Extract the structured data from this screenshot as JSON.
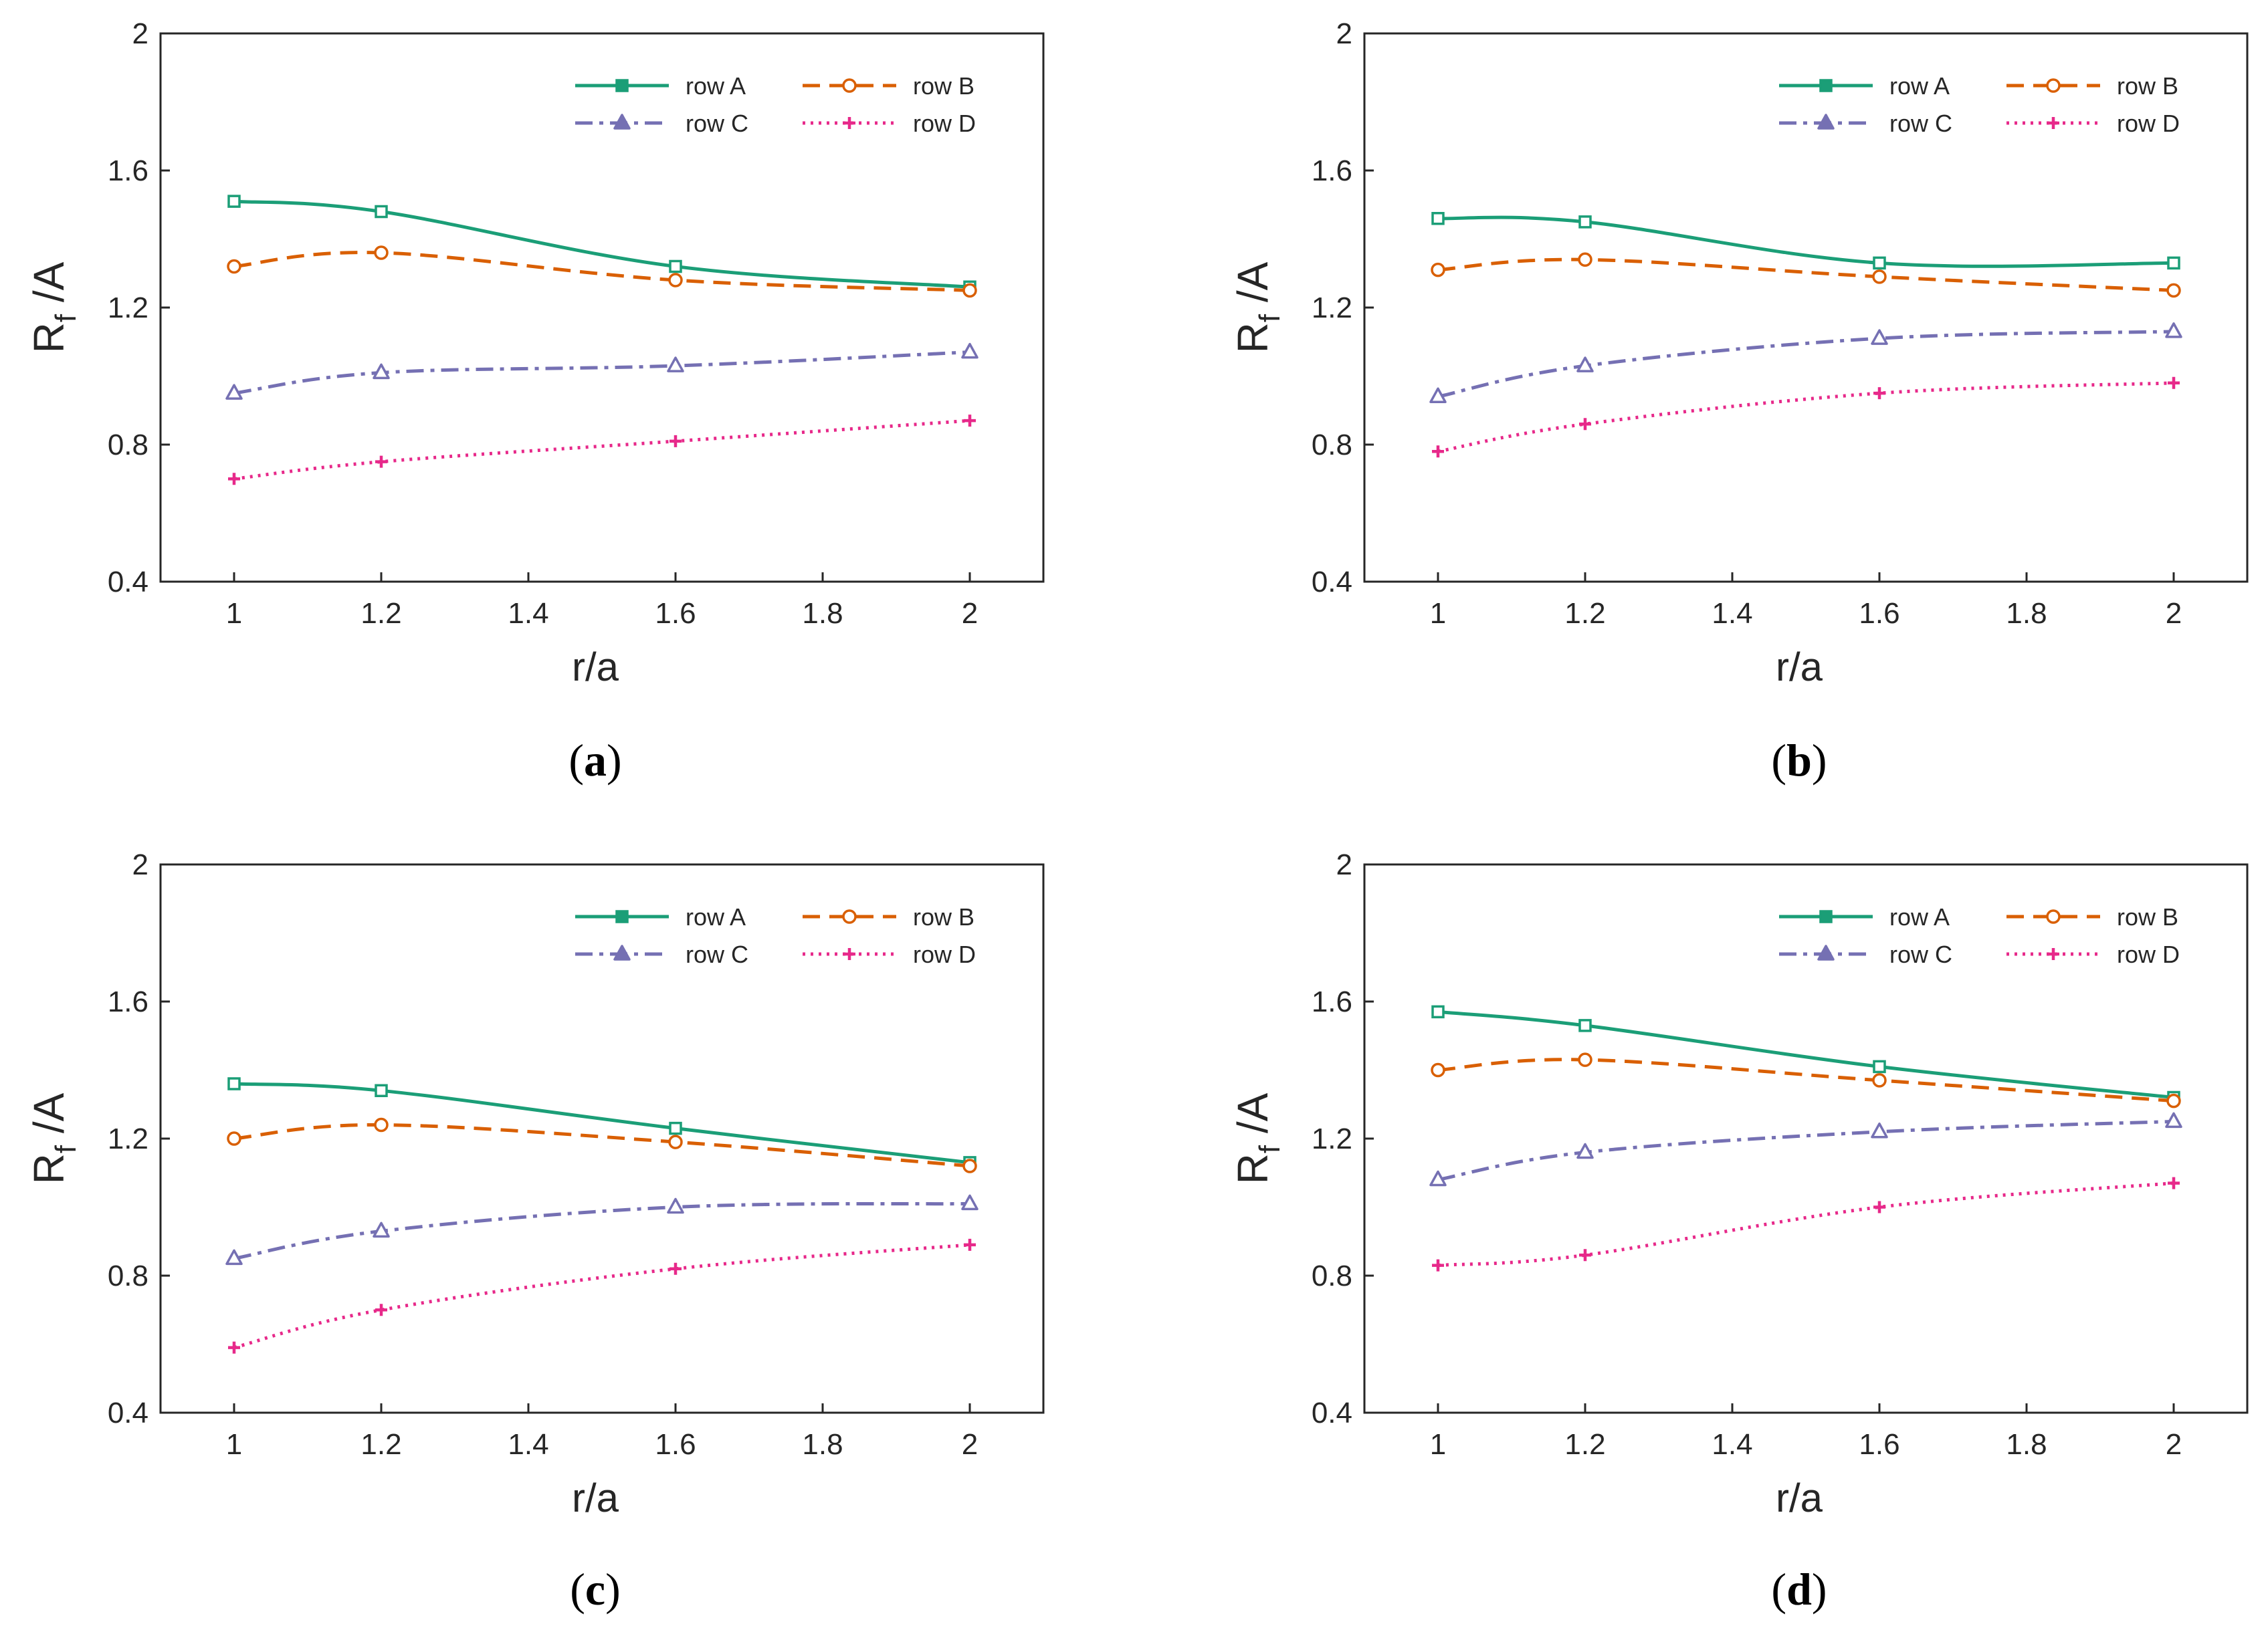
{
  "figure": {
    "panels": [
      {
        "id": "a",
        "caption": "(a)",
        "caption_letter": "a"
      },
      {
        "id": "b",
        "caption": "(b)",
        "caption_letter": "b"
      },
      {
        "id": "c",
        "caption": "(c)",
        "caption_letter": "c"
      },
      {
        "id": "d",
        "caption": "(d)",
        "caption_letter": "d"
      }
    ]
  },
  "colors": {
    "row_A": "#1b9e77",
    "row_B": "#d95f02",
    "row_C": "#7570b3",
    "row_D": "#e7298a",
    "axis": "#262626"
  },
  "chart_data": [
    {
      "type": "line",
      "panel": "a",
      "xlabel": "r/a",
      "ylabel": "R_f /A",
      "ylabel_main": "R",
      "ylabel_sub": "f",
      "ylabel_rest": " /A",
      "xlim": [
        0.9,
        2.1
      ],
      "ylim": [
        0.4,
        2.0
      ],
      "xticks": [
        1,
        1.2,
        1.4,
        1.6,
        1.8,
        2
      ],
      "xtick_labels": [
        "1",
        "1.2",
        "1.4",
        "1.6",
        "1.8",
        "2"
      ],
      "yticks": [
        0.4,
        0.8,
        1.2,
        1.6,
        2.0
      ],
      "ytick_labels": [
        "0.4",
        "0.8",
        "1.2",
        "1.6",
        "2"
      ],
      "x": [
        1,
        1.2,
        1.6,
        2
      ],
      "legend_position": "top-right",
      "series": [
        {
          "name": "row A",
          "marker": "square",
          "dash": "solid",
          "values": [
            1.51,
            1.48,
            1.32,
            1.26
          ]
        },
        {
          "name": "row B",
          "marker": "circle",
          "dash": "dashed",
          "values": [
            1.32,
            1.36,
            1.28,
            1.25
          ]
        },
        {
          "name": "row C",
          "marker": "triangle",
          "dash": "dashdot",
          "values": [
            0.95,
            1.01,
            1.03,
            1.07
          ]
        },
        {
          "name": "row D",
          "marker": "plus",
          "dash": "dotted",
          "values": [
            0.7,
            0.75,
            0.81,
            0.87
          ]
        }
      ]
    },
    {
      "type": "line",
      "panel": "b",
      "xlabel": "r/a",
      "ylabel": "R_f /A",
      "ylabel_main": "R",
      "ylabel_sub": "f",
      "ylabel_rest": " /A",
      "xlim": [
        0.9,
        2.1
      ],
      "ylim": [
        0.4,
        2.0
      ],
      "xticks": [
        1,
        1.2,
        1.4,
        1.6,
        1.8,
        2
      ],
      "xtick_labels": [
        "1",
        "1.2",
        "1.4",
        "1.6",
        "1.8",
        "2"
      ],
      "yticks": [
        0.4,
        0.8,
        1.2,
        1.6,
        2.0
      ],
      "ytick_labels": [
        "0.4",
        "0.8",
        "1.2",
        "1.6",
        "2"
      ],
      "x": [
        1,
        1.2,
        1.6,
        2
      ],
      "legend_position": "top-right",
      "series": [
        {
          "name": "row A",
          "marker": "square",
          "dash": "solid",
          "values": [
            1.46,
            1.45,
            1.33,
            1.33
          ]
        },
        {
          "name": "row B",
          "marker": "circle",
          "dash": "dashed",
          "values": [
            1.31,
            1.34,
            1.29,
            1.25
          ]
        },
        {
          "name": "row C",
          "marker": "triangle",
          "dash": "dashdot",
          "values": [
            0.94,
            1.03,
            1.11,
            1.13
          ]
        },
        {
          "name": "row D",
          "marker": "plus",
          "dash": "dotted",
          "values": [
            0.78,
            0.86,
            0.95,
            0.98
          ]
        }
      ]
    },
    {
      "type": "line",
      "panel": "c",
      "xlabel": "r/a",
      "ylabel": "R_f /A",
      "ylabel_main": "R",
      "ylabel_sub": "f",
      "ylabel_rest": " /A",
      "xlim": [
        0.9,
        2.1
      ],
      "ylim": [
        0.4,
        2.0
      ],
      "xticks": [
        1,
        1.2,
        1.4,
        1.6,
        1.8,
        2
      ],
      "xtick_labels": [
        "1",
        "1.2",
        "1.4",
        "1.6",
        "1.8",
        "2"
      ],
      "yticks": [
        0.4,
        0.8,
        1.2,
        1.6,
        2.0
      ],
      "ytick_labels": [
        "0.4",
        "0.8",
        "1.2",
        "1.6",
        "2"
      ],
      "x": [
        1,
        1.2,
        1.6,
        2
      ],
      "legend_position": "top-right",
      "series": [
        {
          "name": "row A",
          "marker": "square",
          "dash": "solid",
          "values": [
            1.36,
            1.34,
            1.23,
            1.13
          ]
        },
        {
          "name": "row B",
          "marker": "circle",
          "dash": "dashed",
          "values": [
            1.2,
            1.24,
            1.19,
            1.12
          ]
        },
        {
          "name": "row C",
          "marker": "triangle",
          "dash": "dashdot",
          "values": [
            0.85,
            0.93,
            1.0,
            1.01
          ]
        },
        {
          "name": "row D",
          "marker": "plus",
          "dash": "dotted",
          "values": [
            0.59,
            0.7,
            0.82,
            0.89
          ]
        }
      ]
    },
    {
      "type": "line",
      "panel": "d",
      "xlabel": "r/a",
      "ylabel": "R_f /A",
      "ylabel_main": "R",
      "ylabel_sub": "f",
      "ylabel_rest": " /A",
      "xlim": [
        0.9,
        2.1
      ],
      "ylim": [
        0.4,
        2.0
      ],
      "xticks": [
        1,
        1.2,
        1.4,
        1.6,
        1.8,
        2
      ],
      "xtick_labels": [
        "1",
        "1.2",
        "1.4",
        "1.6",
        "1.8",
        "2"
      ],
      "yticks": [
        0.4,
        0.8,
        1.2,
        1.6,
        2.0
      ],
      "ytick_labels": [
        "0.4",
        "0.8",
        "1.2",
        "1.6",
        "2"
      ],
      "x": [
        1,
        1.2,
        1.6,
        2
      ],
      "legend_position": "top-right",
      "series": [
        {
          "name": "row A",
          "marker": "square",
          "dash": "solid",
          "values": [
            1.57,
            1.53,
            1.41,
            1.32
          ]
        },
        {
          "name": "row B",
          "marker": "circle",
          "dash": "dashed",
          "values": [
            1.4,
            1.43,
            1.37,
            1.31
          ]
        },
        {
          "name": "row C",
          "marker": "triangle",
          "dash": "dashdot",
          "values": [
            1.08,
            1.16,
            1.22,
            1.25
          ]
        },
        {
          "name": "row D",
          "marker": "plus",
          "dash": "dotted",
          "values": [
            0.83,
            0.86,
            1.0,
            1.07
          ]
        }
      ]
    }
  ]
}
